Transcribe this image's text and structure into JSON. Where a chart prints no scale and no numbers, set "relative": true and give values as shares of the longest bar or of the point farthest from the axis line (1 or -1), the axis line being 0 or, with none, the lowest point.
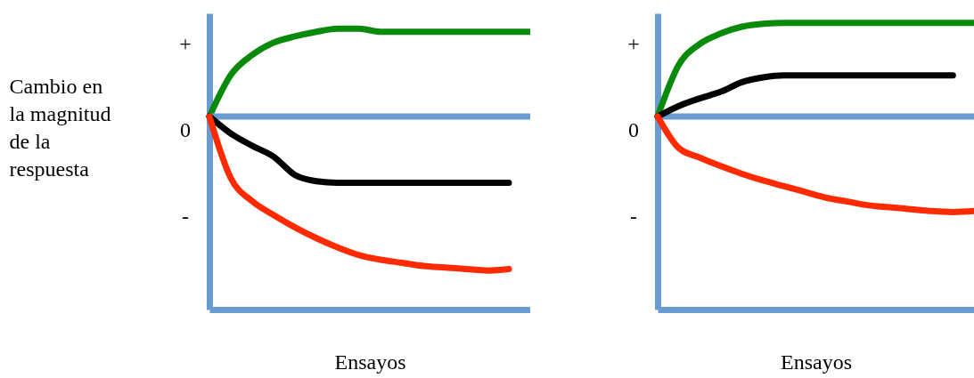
{
  "chart_data": [
    {
      "type": "line",
      "relative": true,
      "xlabel": "Ensayos",
      "ylabel": "Cambio en la magnitud de la respuesta",
      "categories": [
        null,
        null,
        null,
        null,
        null,
        null,
        null,
        null,
        null,
        null,
        null,
        null,
        null,
        null,
        null,
        null
      ],
      "annotations": [
        "+",
        "0",
        "-"
      ],
      "ref_lines": [
        {
          "axis": "y",
          "value": 0,
          "color": "#6a9bd1"
        }
      ],
      "series": [
        {
          "color": "#0a8a0a",
          "values": [
            0,
            0.27,
            0.4,
            0.48,
            0.52,
            0.55,
            0.57,
            0.57,
            0.55,
            0.55,
            0.55,
            0.55,
            0.55,
            0.55,
            0.55,
            0.55
          ]
        },
        {
          "color": "#000000",
          "values": [
            0,
            -0.11,
            -0.19,
            -0.26,
            -0.38,
            -0.42,
            -0.43,
            -0.43,
            -0.43,
            -0.43,
            -0.43,
            -0.43,
            -0.43,
            -0.43,
            -0.43,
            null
          ]
        },
        {
          "color": "#ff2a00",
          "values": [
            0,
            -0.4,
            -0.55,
            -0.64,
            -0.72,
            -0.79,
            -0.85,
            -0.9,
            -0.93,
            -0.95,
            -0.97,
            -0.98,
            -0.99,
            -1,
            -0.99,
            null
          ]
        }
      ]
    },
    {
      "type": "line",
      "relative": true,
      "xlabel": "Ensayos",
      "categories": [
        null,
        null,
        null,
        null,
        null,
        null,
        null,
        null,
        null,
        null,
        null,
        null,
        null,
        null,
        null,
        null
      ],
      "annotations": [
        "+",
        "0",
        "-"
      ],
      "ref_lines": [
        {
          "axis": "y",
          "value": 0,
          "color": "#6a9bd1"
        }
      ],
      "series": [
        {
          "color": "#0a8a0a",
          "values": [
            0,
            0.54,
            0.76,
            0.87,
            0.94,
            0.97,
            0.98,
            0.98,
            0.98,
            0.98,
            0.98,
            0.98,
            0.98,
            0.98,
            0.98,
            0.98
          ]
        },
        {
          "color": "#000000",
          "values": [
            0,
            0.11,
            0.19,
            0.26,
            0.36,
            0.41,
            0.43,
            0.43,
            0.43,
            0.43,
            0.43,
            0.43,
            0.43,
            0.43,
            0.43,
            null
          ]
        },
        {
          "color": "#ff2a00",
          "values": [
            0,
            -0.33,
            -0.43,
            -0.52,
            -0.6,
            -0.67,
            -0.73,
            -0.79,
            -0.85,
            -0.89,
            -0.93,
            -0.95,
            -0.97,
            -0.99,
            -1,
            -0.99
          ]
        }
      ]
    }
  ]
}
